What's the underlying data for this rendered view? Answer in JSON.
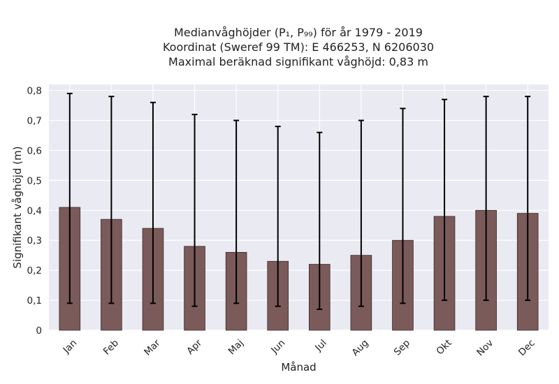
{
  "chart_data": {
    "type": "bar",
    "title_lines": [
      "Medianvåghöjder (P₁, P₉₉) för år 1979 - 2019",
      "Koordinat (Sweref 99 TM): E 466253, N 6206030",
      "Maximal beräknad signifikant våghöjd: 0,83 m"
    ],
    "xlabel": "Månad",
    "ylabel": "Signifikant våghöjd (m)",
    "categories": [
      "Jan",
      "Feb",
      "Mar",
      "Apr",
      "Maj",
      "Jun",
      "Jul",
      "Aug",
      "Sep",
      "Okt",
      "Nov",
      "Dec"
    ],
    "values": [
      0.41,
      0.37,
      0.34,
      0.28,
      0.26,
      0.23,
      0.22,
      0.25,
      0.3,
      0.38,
      0.4,
      0.39
    ],
    "error_low": [
      0.09,
      0.09,
      0.09,
      0.08,
      0.09,
      0.08,
      0.07,
      0.08,
      0.09,
      0.1,
      0.1,
      0.1
    ],
    "error_high": [
      0.79,
      0.78,
      0.76,
      0.72,
      0.7,
      0.68,
      0.66,
      0.7,
      0.74,
      0.77,
      0.78,
      0.78
    ],
    "ylim": [
      0,
      0.82
    ],
    "yticks": [
      0,
      0.1,
      0.2,
      0.3,
      0.4,
      0.5,
      0.6,
      0.7,
      0.8
    ],
    "ytick_labels": [
      "0",
      "0,1",
      "0,2",
      "0,3",
      "0,4",
      "0,5",
      "0,6",
      "0,7",
      "0,8"
    ],
    "grid": true,
    "colors": {
      "bar": "#7b5a5a",
      "bar_edge": "#3a2a2a",
      "error": "#000000",
      "plot_background": "#eaeaf2",
      "grid": "#ffffff"
    }
  }
}
